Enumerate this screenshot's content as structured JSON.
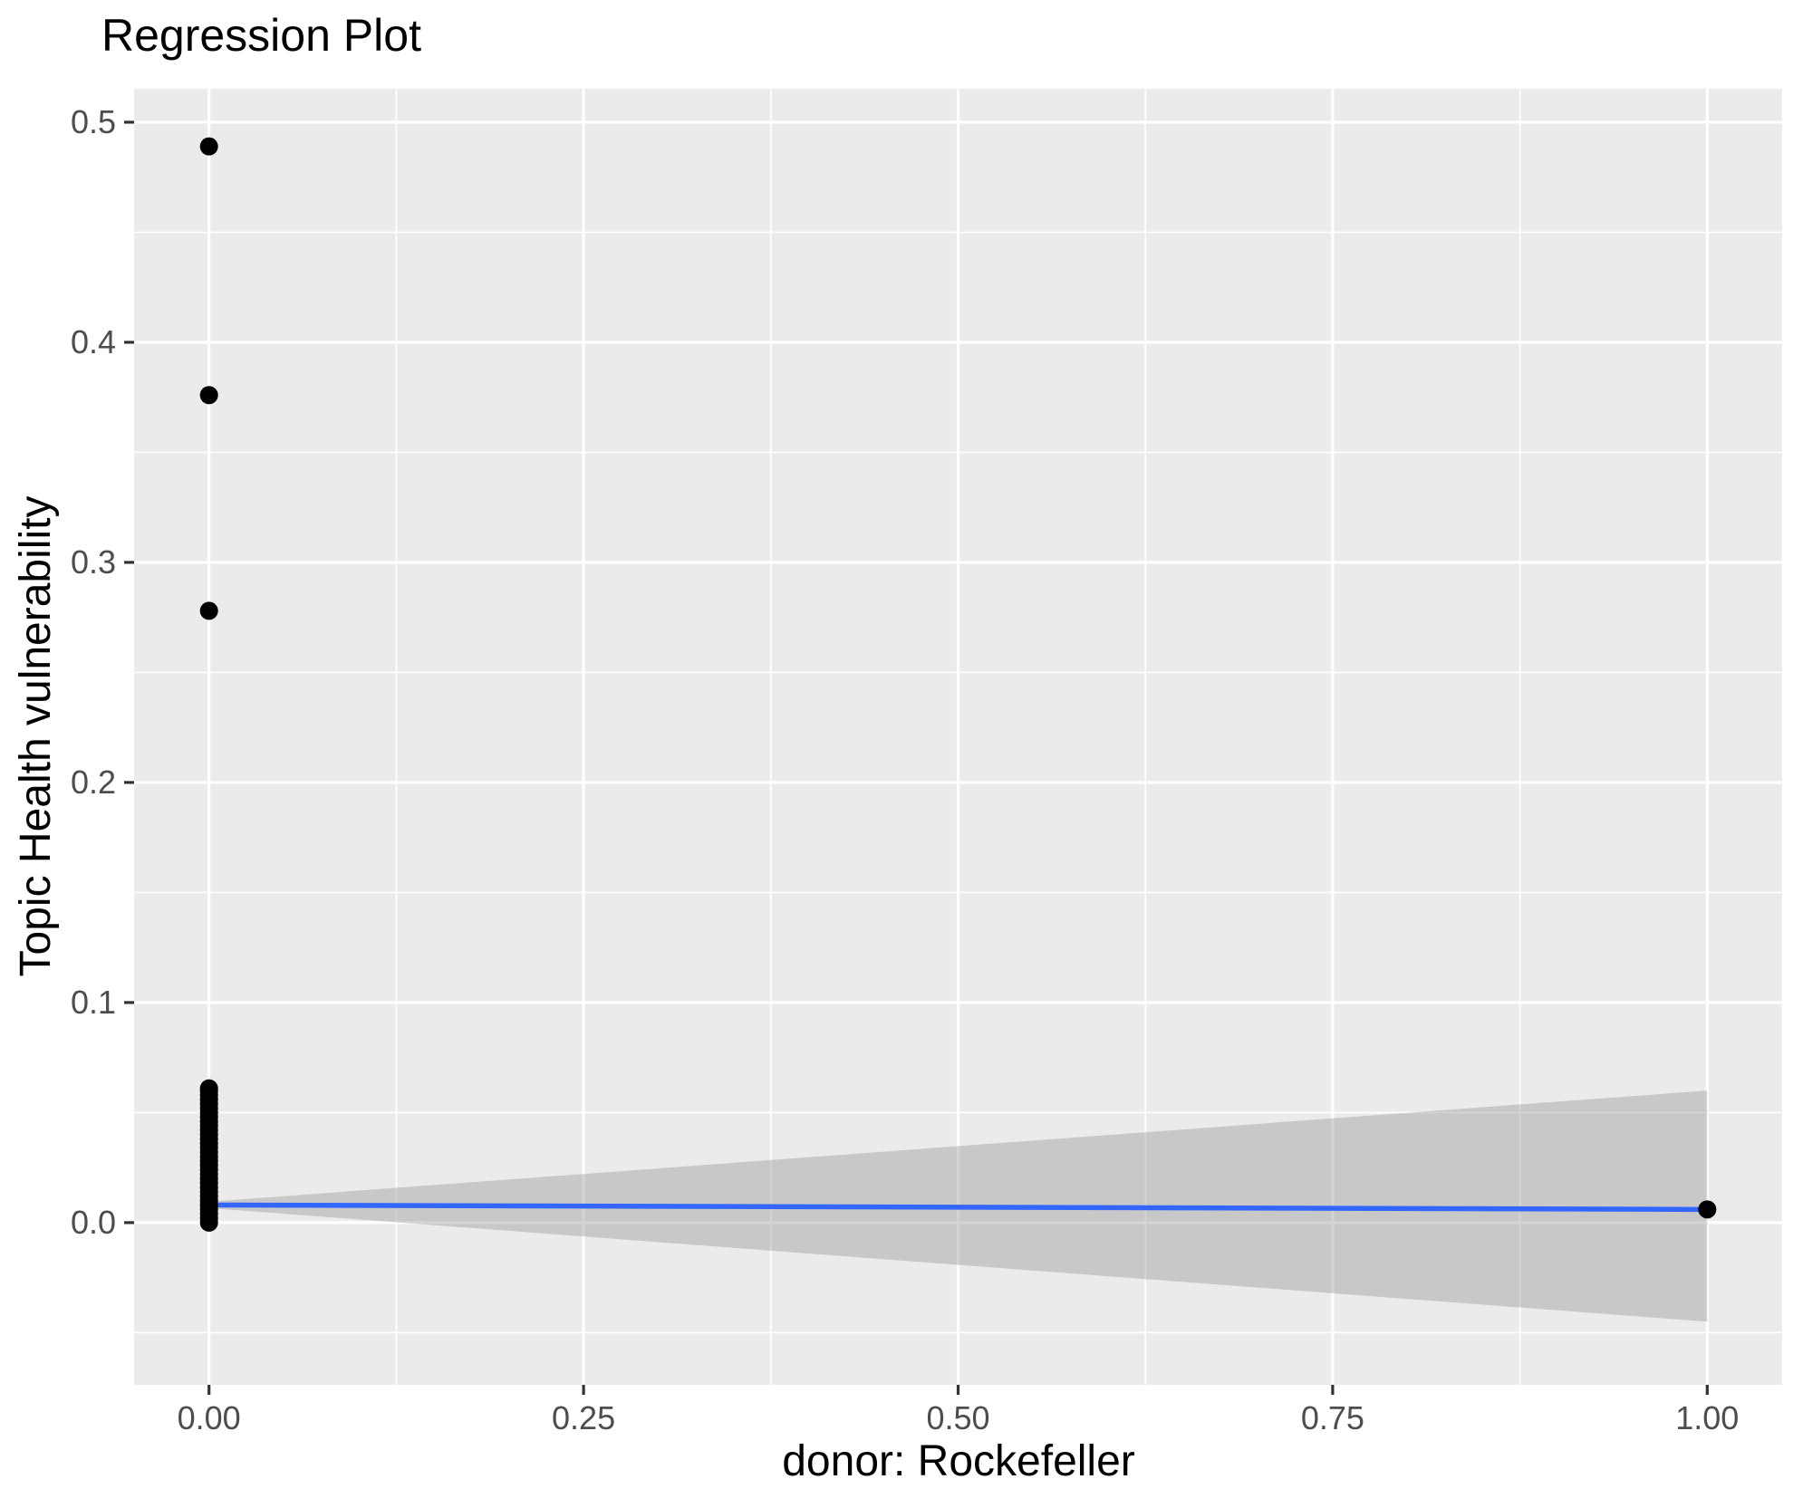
{
  "chart_data": {
    "type": "scatter",
    "title": "Regression Plot",
    "xlabel": "donor: Rockefeller",
    "ylabel": "Topic Health vulnerability",
    "xlim": [
      -0.05,
      1.05
    ],
    "ylim": [
      -0.0737,
      0.5152
    ],
    "x_major_ticks": [
      0,
      0.25,
      0.5,
      0.75,
      1.0
    ],
    "x_tick_labels": [
      "0.00",
      "0.25",
      "0.50",
      "0.75",
      "1.00"
    ],
    "x_minor_ticks": [
      0.125,
      0.375,
      0.625,
      0.875
    ],
    "y_major_ticks": [
      0.0,
      0.1,
      0.2,
      0.3,
      0.4,
      0.5
    ],
    "y_tick_labels": [
      "0.0",
      "0.1",
      "0.2",
      "0.3",
      "0.4",
      "0.5"
    ],
    "y_minor_ticks": [
      -0.05,
      0.05,
      0.15,
      0.25,
      0.35,
      0.45
    ],
    "grid": true,
    "legend_position": "none",
    "points": [
      [
        0,
        0.0
      ],
      [
        0,
        0.002
      ],
      [
        0,
        0.004
      ],
      [
        0,
        0.006
      ],
      [
        0,
        0.008
      ],
      [
        0,
        0.01
      ],
      [
        0,
        0.012
      ],
      [
        0,
        0.014
      ],
      [
        0,
        0.016
      ],
      [
        0,
        0.018
      ],
      [
        0,
        0.02
      ],
      [
        0,
        0.022
      ],
      [
        0,
        0.024
      ],
      [
        0,
        0.026
      ],
      [
        0,
        0.028
      ],
      [
        0,
        0.03
      ],
      [
        0,
        0.032
      ],
      [
        0,
        0.034
      ],
      [
        0,
        0.036
      ],
      [
        0,
        0.038
      ],
      [
        0,
        0.04
      ],
      [
        0,
        0.042
      ],
      [
        0,
        0.044
      ],
      [
        0,
        0.046
      ],
      [
        0,
        0.048
      ],
      [
        0,
        0.05
      ],
      [
        0,
        0.052
      ],
      [
        0,
        0.054
      ],
      [
        0,
        0.056
      ],
      [
        0,
        0.058
      ],
      [
        0,
        0.06
      ],
      [
        0,
        0.061
      ],
      [
        0,
        0.278
      ],
      [
        0,
        0.376
      ],
      [
        0,
        0.489
      ],
      [
        1,
        0.006
      ]
    ],
    "regression_line": {
      "x": [
        0,
        1
      ],
      "y": [
        0.008,
        0.006
      ]
    },
    "confidence_band": {
      "upper": [
        [
          0,
          0.0095
        ],
        [
          1,
          0.06
        ]
      ],
      "lower": [
        [
          0,
          0.0066
        ],
        [
          1,
          -0.045
        ]
      ]
    },
    "colors": {
      "panel_background": "#EBEBEB",
      "grid_line": "#FFFFFF",
      "point": "#000000",
      "smooth_line": "#3366FF",
      "band_fill_rgba": "rgba(153,153,153,0.42)",
      "tick_mark": "#333333",
      "tick_text": "#4D4D4D",
      "title_text": "#000000"
    }
  }
}
